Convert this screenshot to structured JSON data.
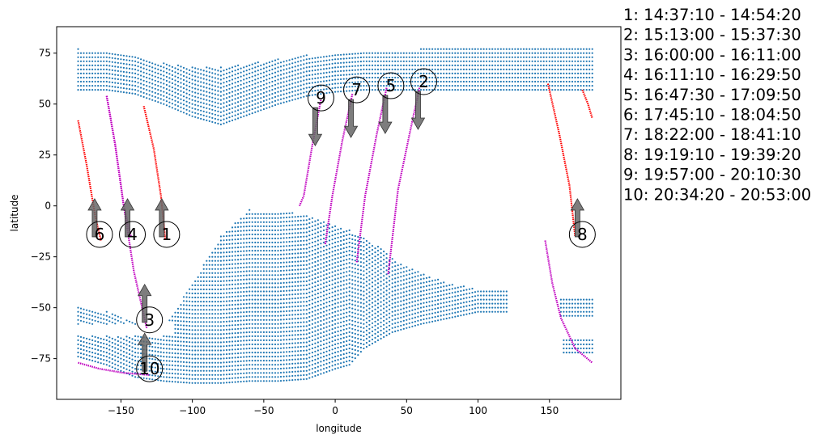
{
  "chart_data": {
    "type": "scatter",
    "xlabel": "longitude",
    "ylabel": "latitude",
    "xlim": [
      -195,
      200
    ],
    "ylim": [
      -95,
      88
    ],
    "x_ticks": [
      -150,
      -100,
      -50,
      0,
      50,
      100,
      150
    ],
    "x_tick_labels": [
      "−150",
      "−100",
      "−50",
      "0",
      "50",
      "100",
      "150"
    ],
    "y_ticks": [
      -75,
      -50,
      -25,
      0,
      25,
      50,
      75
    ],
    "y_tick_labels": [
      "−75",
      "−50",
      "−25",
      "0",
      "25",
      "50",
      "75"
    ],
    "grid": false,
    "region_color": "#1f77b4",
    "passes": [
      {
        "id": "1",
        "time": "14:37:10 - 14:54:20",
        "color": "#ff0000",
        "path": [
          [
            -134,
            49
          ],
          [
            -127,
            28
          ],
          [
            -122,
            5
          ],
          [
            -119,
            -16
          ]
        ],
        "marker": [
          -118,
          -14
        ],
        "arrow": "up"
      },
      {
        "id": "2",
        "time": "15:13:00 - 15:37:30",
        "color": "#c000c0",
        "path": [
          [
            59,
            58
          ],
          [
            52,
            35
          ],
          [
            44,
            8
          ],
          [
            37,
            -34
          ]
        ],
        "marker": [
          62,
          61
        ],
        "arrow": "down"
      },
      {
        "id": "3",
        "time": "16:00:00 - 16:11:00",
        "color": "#c000c0",
        "path": [
          [
            -160,
            54
          ],
          [
            -154,
            30
          ],
          [
            -148,
            0
          ],
          [
            -141,
            -32
          ],
          [
            -132,
            -60
          ]
        ],
        "marker": [
          -130,
          -56
        ],
        "arrow": "up"
      },
      {
        "id": "4",
        "time": "16:11:10 - 16:29:50",
        "color": "#c000c0",
        "path": [
          [
            -160,
            54
          ],
          [
            -154,
            30
          ],
          [
            -148,
            0
          ],
          [
            -143,
            -15
          ]
        ],
        "marker": [
          -142,
          -14
        ],
        "arrow": "up"
      },
      {
        "id": "5",
        "time": "16:47:30 - 17:09:50",
        "color": "#c000c0",
        "path": [
          [
            36,
            58
          ],
          [
            29,
            35
          ],
          [
            21,
            5
          ],
          [
            15,
            -28
          ]
        ],
        "marker": [
          39,
          59
        ],
        "arrow": "down"
      },
      {
        "id": "6",
        "time": "17:45:10 - 18:04:50",
        "color": "#ff0000",
        "path": [
          [
            -180,
            42
          ],
          [
            -174,
            20
          ],
          [
            -168,
            -5
          ],
          [
            -164,
            -17
          ]
        ],
        "marker": [
          -165,
          -14
        ],
        "arrow": "up"
      },
      {
        "id": "7",
        "time": "18:22:00 - 18:41:10",
        "color": "#c000c0",
        "path": [
          [
            12,
            55
          ],
          [
            5,
            32
          ],
          [
            -2,
            5
          ],
          [
            -7,
            -19
          ]
        ],
        "marker": [
          15,
          57
        ],
        "arrow": "down"
      },
      {
        "id": "8",
        "time": "19:19:10 - 19:39:20",
        "color": "#ff0000",
        "path": [
          [
            149,
            60
          ],
          [
            157,
            35
          ],
          [
            164,
            10
          ],
          [
            168,
            -15
          ]
        ],
        "marker": [
          173,
          -14
        ],
        "arrow": "up"
      },
      {
        "id": "9",
        "time": "19:57:00 - 20:10:30",
        "color": "#c000c0",
        "path": [
          [
            -10,
            52
          ],
          [
            -16,
            30
          ],
          [
            -22,
            5
          ],
          [
            -25,
            0
          ]
        ],
        "marker": [
          -10,
          53
        ],
        "arrow": "down"
      },
      {
        "id": "10",
        "time": "20:34:20 - 20:53:00",
        "color": "#c000c0",
        "path": [
          [
            -180,
            -77
          ],
          [
            -165,
            -80
          ],
          [
            -148,
            -82
          ],
          [
            -130,
            -83
          ]
        ],
        "marker": [
          -130,
          -80
        ],
        "arrow": "up"
      }
    ],
    "extra_tracks": [
      {
        "color": "#ff0000",
        "path": [
          [
            173,
            57
          ],
          [
            177,
            50
          ],
          [
            180,
            43
          ]
        ]
      },
      {
        "color": "#c000c0",
        "path": [
          [
            147,
            -17
          ],
          [
            152,
            -38
          ],
          [
            158,
            -55
          ],
          [
            168,
            -70
          ],
          [
            180,
            -77
          ]
        ]
      }
    ],
    "legend": [
      "1:  14:37:10 - 14:54:20",
      "2:  15:13:00 - 15:37:30",
      "3:  16:00:00 - 16:11:00",
      "4:  16:11:10 - 16:29:50",
      "5:  16:47:30 - 17:09:50",
      "6:  17:45:10 - 18:04:50",
      "7:  18:22:00 - 18:41:10",
      "8:  19:19:10 - 19:39:20",
      "9:  19:57:00 - 20:10:30",
      "10:  20:34:20 - 20:53:00"
    ],
    "legend_placement": "right"
  }
}
